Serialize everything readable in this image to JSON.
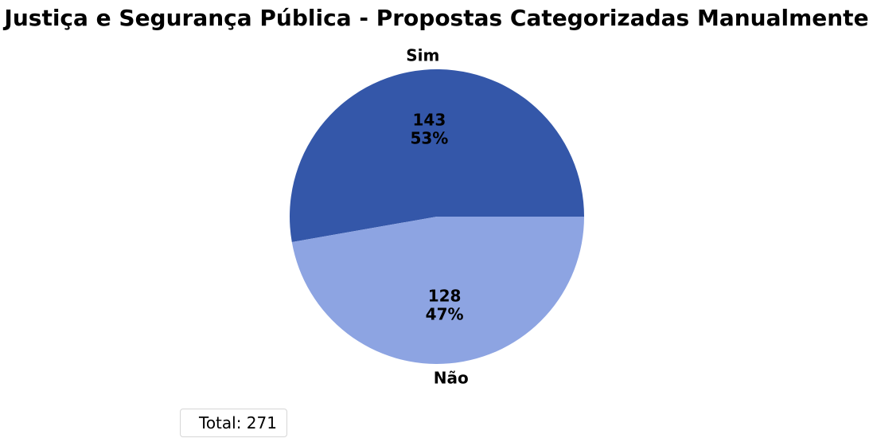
{
  "chart_data": {
    "type": "pie",
    "title": "Justiça e Segurança Pública - Propostas Categorizadas Manualmente",
    "slices": [
      {
        "label": "Sim",
        "value": 143,
        "percent_label": "53%",
        "color": "#3457a9"
      },
      {
        "label": "Não",
        "value": 128,
        "percent_label": "47%",
        "color": "#8da4e2"
      }
    ],
    "legend": {
      "placement": "lower-left",
      "text": "Total: 271"
    }
  }
}
